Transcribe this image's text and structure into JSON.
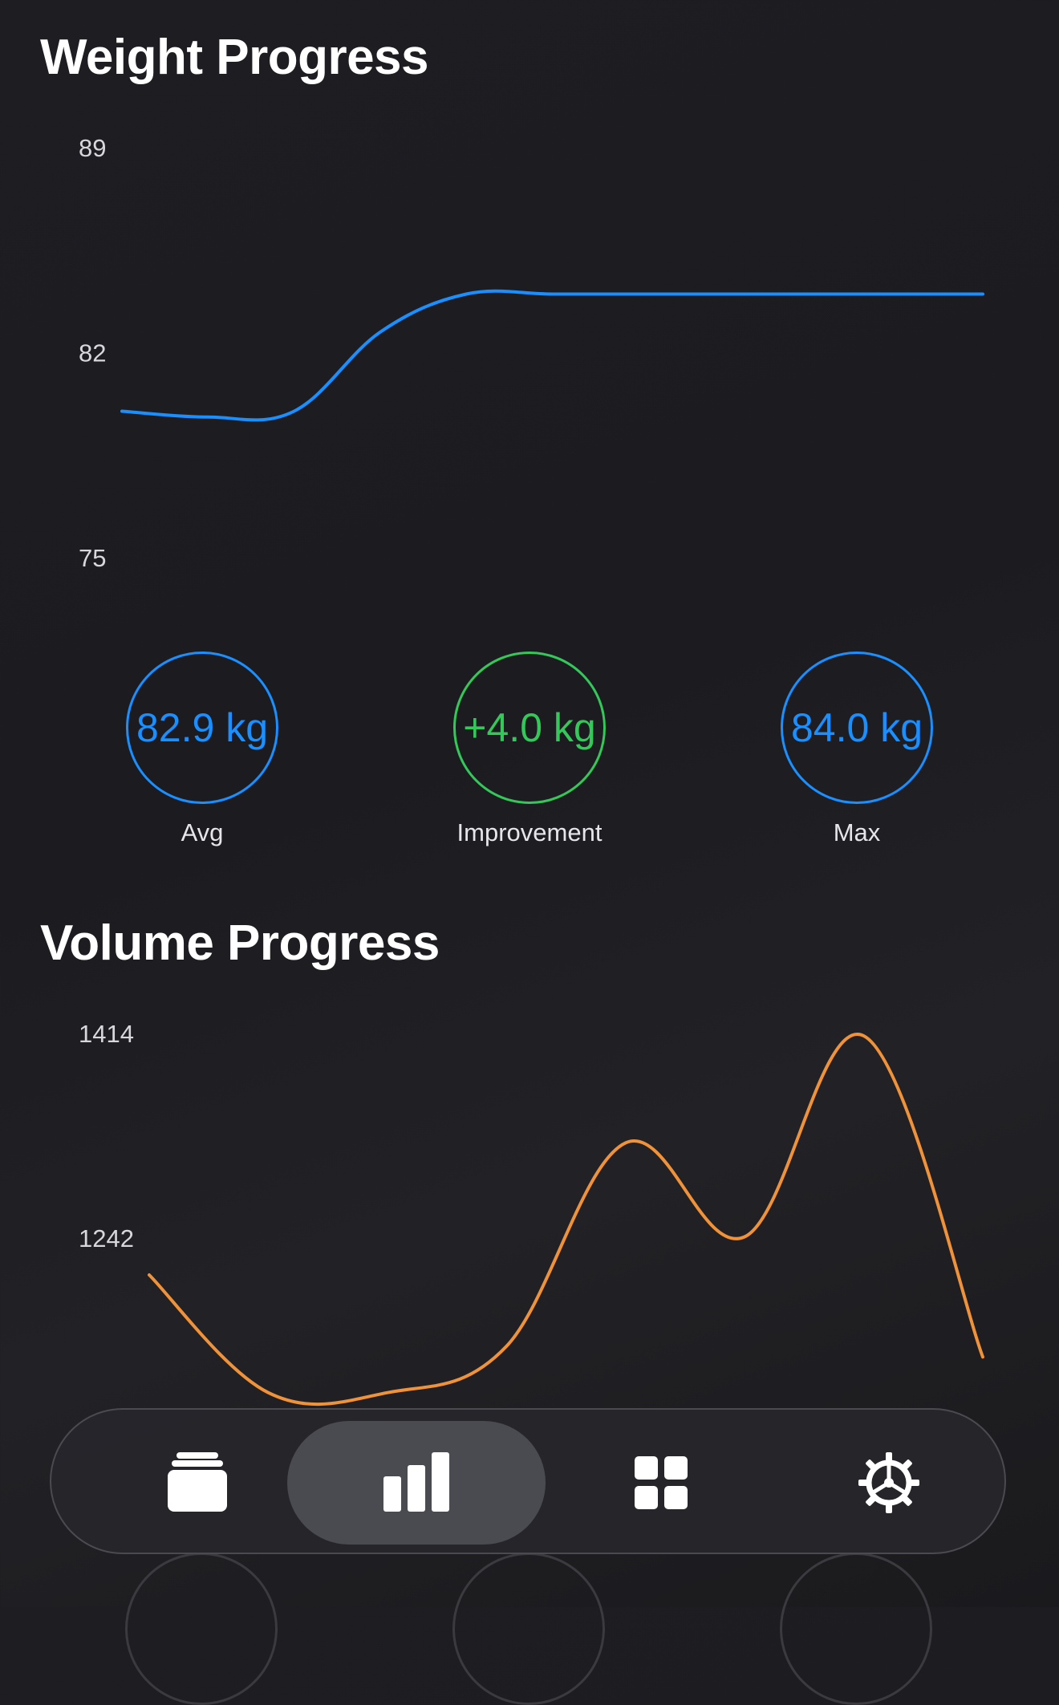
{
  "weight_section": {
    "title": "Weight Progress",
    "stats": {
      "avg": {
        "value": "82.9 kg",
        "label": "Avg"
      },
      "improvement": {
        "value": "+4.0 kg",
        "label": "Improvement"
      },
      "max": {
        "value": "84.0 kg",
        "label": "Max"
      }
    }
  },
  "volume_section": {
    "title": "Volume Progress"
  },
  "chart_data": [
    {
      "type": "line",
      "title": "Weight Progress",
      "yticks": [
        "89",
        "82",
        "75"
      ],
      "ylim": [
        75,
        89
      ],
      "grid": false,
      "series": [
        {
          "color": "#1a8fff",
          "values": [
            80.0,
            79.8,
            80.0,
            82.7,
            84.0,
            84.0,
            84.0,
            84.0,
            84.0,
            84.0,
            84.0
          ]
        }
      ]
    },
    {
      "type": "line",
      "title": "Volume Progress",
      "yticks": [
        "1414",
        "1242"
      ],
      "ylim": [
        1070,
        1414
      ],
      "grid": false,
      "series": [
        {
          "color": "#f0923a",
          "values": [
            1211,
            1112,
            1112,
            1151,
            1322,
            1243,
            1412,
            1142
          ]
        }
      ]
    }
  ],
  "tab_bar": {
    "tabs": [
      {
        "icon": "cards-stack-icon",
        "active": false
      },
      {
        "icon": "bar-chart-icon",
        "active": true
      },
      {
        "icon": "grid-icon",
        "active": false
      },
      {
        "icon": "gear-icon",
        "active": false
      }
    ]
  },
  "colors": {
    "accent_blue": "#1a8fff",
    "accent_green": "#34c759",
    "accent_orange": "#f0923a",
    "background": "#1c1c20"
  }
}
